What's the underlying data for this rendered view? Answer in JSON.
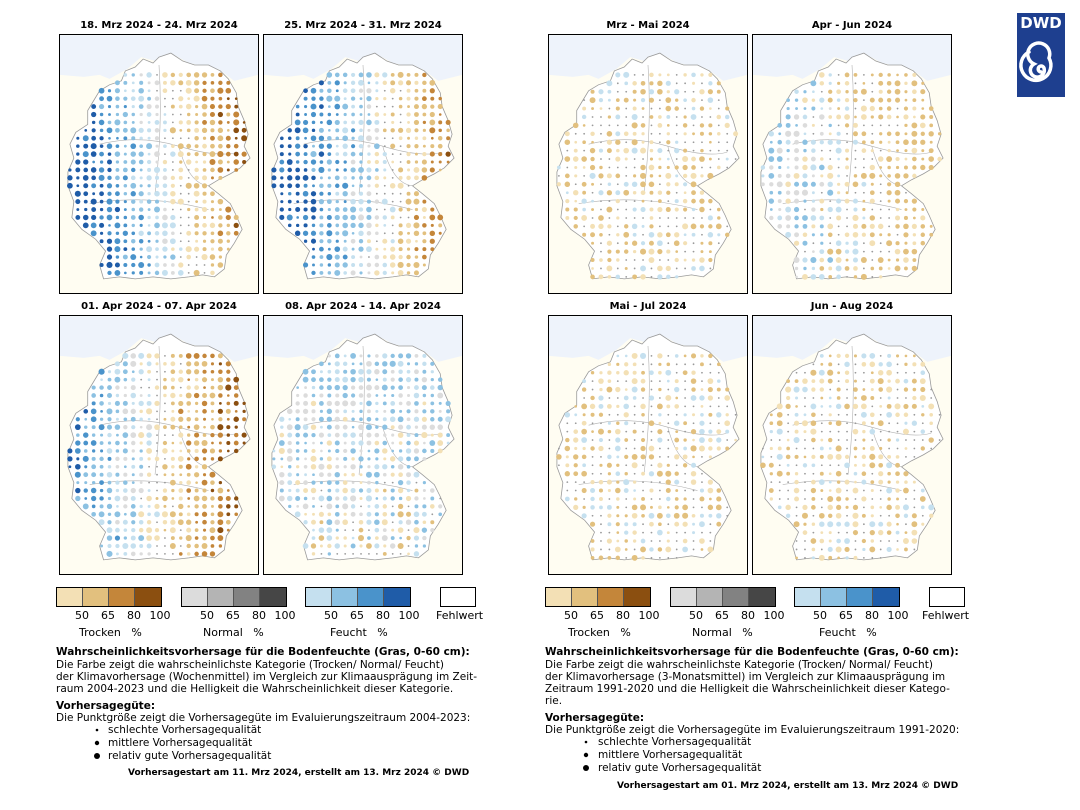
{
  "logo": {
    "text": "DWD"
  },
  "left": {
    "maps": [
      {
        "title": "18. Mrz 2024 - 24. Mrz 2024",
        "kind": "week",
        "seed": 11
      },
      {
        "title": "25. Mrz 2024 - 31. Mrz 2024",
        "kind": "week2",
        "seed": 23
      },
      {
        "title": "01. Apr 2024 - 07. Apr 2024",
        "kind": "week3",
        "seed": 37
      },
      {
        "title": "08. Apr 2024 - 14. Apr 2024",
        "kind": "week4",
        "seed": 41
      }
    ],
    "heading": "Wahrscheinlichkeitsvorhersage für die Bodenfeuchte (Gras, 0-60 cm):",
    "desc": [
      "Die Farbe zeigt die wahrscheinlichste Kategorie (Trocken/ Normal/ Feucht)",
      "der Klimavorhersage (Wochenmittel) im Vergleich zur Klimaausprägung im Zeit-",
      "raum 2004-2023 und die Helligkeit die Wahrscheinlichkeit dieser Kategorie."
    ],
    "quality_heading": "Vorhersagegüte:",
    "quality_desc": "Die Punktgröße zeigt die Vorhersagegüte im Evaluierungszeitraum 2004-2023:",
    "footer": "Vorhersagestart am 11. Mrz 2024, erstellt am 13. Mrz 2024 © DWD"
  },
  "right": {
    "maps": [
      {
        "title": "Mrz - Mai 2024",
        "kind": "season",
        "seed": 53
      },
      {
        "title": "Apr - Jun 2024",
        "kind": "season2",
        "seed": 67
      },
      {
        "title": "Mai - Jul 2024",
        "kind": "season",
        "seed": 71
      },
      {
        "title": "Jun - Aug 2024",
        "kind": "season",
        "seed": 89
      }
    ],
    "heading": "Wahrscheinlichkeitsvorhersage für die Bodenfeuchte (Gras, 0-60 cm):",
    "desc": [
      "Die Farbe zeigt die wahrscheinlichste Kategorie (Trocken/ Normal/ Feucht)",
      "der Klimavorhersage (3-Monatsmittel) im Vergleich zur Klimaausprägung im",
      "Zeitraum 1991-2020 und die Helligkeit die Wahrscheinlichkeit dieser Katego-",
      "rie."
    ],
    "quality_heading": "Vorhersagegüte:",
    "quality_desc": "Die Punktgröße zeigt die Vorhersagegüte im Evaluierungszeitraum 1991-2020:",
    "footer": "Vorhersagestart am 01. Mrz 2024, erstellt am 13. Mrz 2024 © DWD"
  },
  "legend": {
    "ticks": [
      "50",
      "65",
      "80",
      "100"
    ],
    "categories": [
      {
        "label": "Trocken   %",
        "colors": [
          "#f3e0b5",
          "#e2c07e",
          "#c4863a",
          "#8b4f10"
        ]
      },
      {
        "label": "Normal   %",
        "colors": [
          "#dcdcdc",
          "#b4b4b4",
          "#828282",
          "#464646"
        ]
      },
      {
        "label": "Feucht   %",
        "colors": [
          "#c5e0ef",
          "#8cc1e2",
          "#4a93cb",
          "#1f5ca8"
        ]
      }
    ],
    "missing_label": "Fehlwert",
    "quality_items": [
      "schlechte Vorhersagequalität",
      "mittlere Vorhersagequalität",
      "relativ gute Vorhersagequalität"
    ]
  },
  "colors": {
    "sea": "#eef3fb",
    "land_bg": "#fffdf2",
    "border": "#9a9a9a",
    "brand": "#1e3f8f"
  }
}
